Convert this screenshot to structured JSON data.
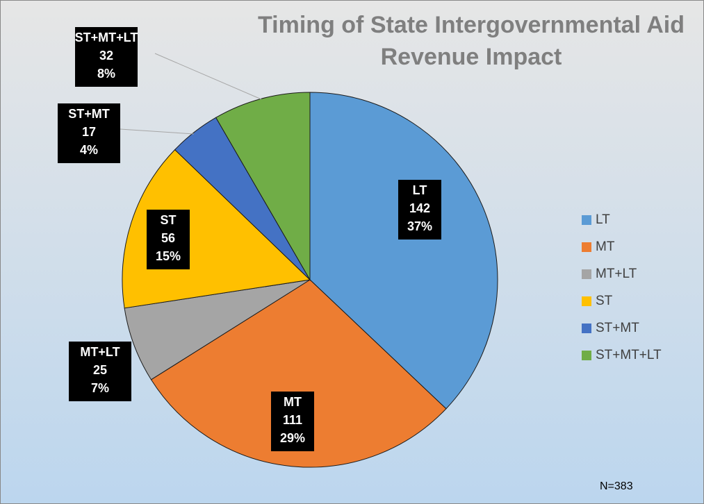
{
  "chart_data": {
    "type": "pie",
    "title": "Timing of State Intergovernmental Aid Revenue Impact",
    "categories": [
      "LT",
      "MT",
      "MT+LT",
      "ST",
      "ST+MT",
      "ST+MT+LT"
    ],
    "values": [
      142,
      111,
      25,
      56,
      17,
      32
    ],
    "percent_labels": [
      "37%",
      "29%",
      "7%",
      "15%",
      "4%",
      "8%"
    ],
    "colors": [
      "#5b9bd5",
      "#ed7d31",
      "#a5a5a5",
      "#ffc000",
      "#4472c4",
      "#70ad47"
    ],
    "legend": "right",
    "annotation": "N=383"
  }
}
